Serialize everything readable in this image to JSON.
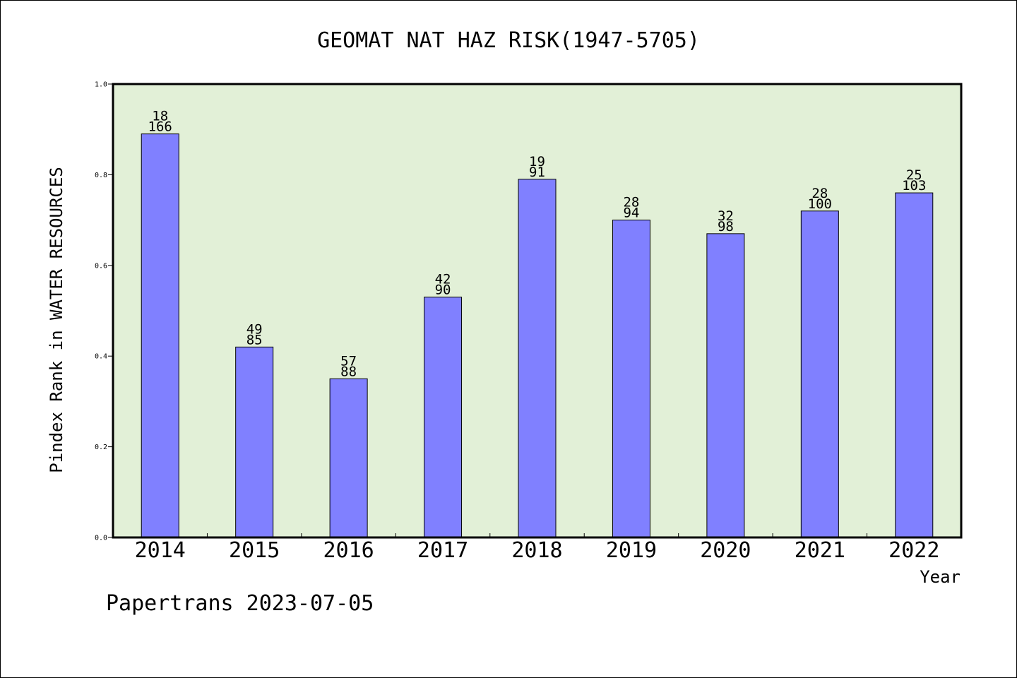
{
  "chart_data": {
    "type": "bar",
    "title": "GEOMAT NAT HAZ RISK(1947-5705)",
    "ylabel": "Pindex Rank in WATER RESOURCES",
    "xlabel": "Year",
    "categories": [
      "2014",
      "2015",
      "2016",
      "2017",
      "2018",
      "2019",
      "2020",
      "2021",
      "2022"
    ],
    "values": [
      0.89,
      0.42,
      0.35,
      0.53,
      0.79,
      0.7,
      0.67,
      0.72,
      0.76
    ],
    "bar_labels_top": [
      "18",
      "49",
      "57",
      "42",
      "19",
      "28",
      "32",
      "28",
      "25"
    ],
    "bar_labels_bottom": [
      "166",
      "85",
      "88",
      "90",
      "91",
      "94",
      "98",
      "100",
      "103"
    ],
    "ylim": [
      0.0,
      1.0
    ],
    "yticks": [
      "0.0",
      "0.2",
      "0.4",
      "0.6",
      "0.8",
      "1.0"
    ],
    "grid": false,
    "legend": "none",
    "colors": {
      "bar": "#8080ff",
      "plot_background": "#e2f0d7",
      "axis": "#000000"
    }
  },
  "footer": {
    "text": "Papertrans 2023-07-05"
  }
}
